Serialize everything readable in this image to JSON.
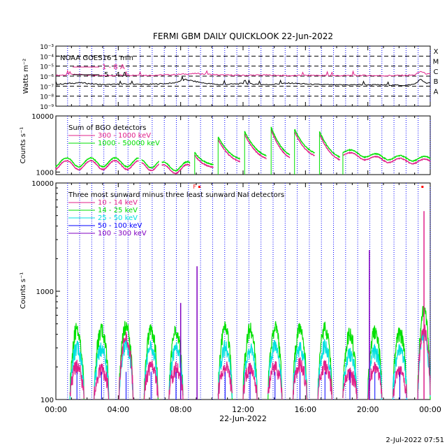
{
  "title": "FERMI GBM DAILY QUICKLOOK  22-Jun-2022",
  "footer_timestamp": "2-Jul-2022 07:51",
  "x_axis": {
    "label": "22-Jun-2022",
    "ticks": [
      "00:00",
      "04:00",
      "08:00",
      "12:00",
      "16:00",
      "20:00",
      "00:00"
    ]
  },
  "colors": {
    "axes": "#000000",
    "gridline": "#0000ff",
    "dashed_level": "#000000",
    "pink": "#e0208a",
    "green": "#00e000",
    "cyan": "#00e0e0",
    "blue": "#0000ff",
    "purple": "#8000c0",
    "red_marker": "#ff0000"
  },
  "chart_data": [
    {
      "type": "line",
      "panel": "goes",
      "ylabel": "Watts m⁻²",
      "yscale": "log",
      "ylim": [
        1e-09,
        0.001
      ],
      "y_ticks": [
        "10⁻³",
        "10⁻⁴",
        "10⁻⁵",
        "10⁻⁶",
        "10⁻⁷",
        "10⁻⁸",
        "10⁻⁹"
      ],
      "flare_classes": [
        "X",
        "M",
        "C",
        "B",
        "A"
      ],
      "legend_title": "NOAA GOES16 1 min",
      "series": [
        {
          "name": "1 - 8 A",
          "color": "#e0208a",
          "baseline": 1.4e-06,
          "x": [
            0,
            1.5,
            3,
            4.5,
            6,
            7.5,
            9,
            10.5,
            12,
            13.5,
            15,
            16.5,
            18,
            19.5,
            21,
            22.5,
            23,
            23.4,
            23.7,
            24
          ],
          "y": [
            1.2e-06,
            1.5e-06,
            1.1e-06,
            1.3e-06,
            1.2e-06,
            1.4e-06,
            1.8e-06,
            1.3e-06,
            1.2e-06,
            1.3e-06,
            1.1e-06,
            1.2e-06,
            1.1e-06,
            1.2e-06,
            1.1e-06,
            1.2e-06,
            1.3e-06,
            3e-06,
            1.8e-06,
            1.5e-06
          ]
        },
        {
          "name": ".5 - 4 A",
          "color": "#000000",
          "baseline": 1.5e-07,
          "x": [
            0,
            1.5,
            3,
            4.5,
            6,
            7.5,
            8.3,
            9,
            9.5,
            10.5,
            12,
            13.5,
            15,
            16.5,
            18,
            19.5,
            21,
            22.5,
            23,
            23.4,
            23.7,
            24
          ],
          "y": [
            1.5e-07,
            2.2e-07,
            1.4e-07,
            1.6e-07,
            1.5e-07,
            2e-07,
            4.5e-07,
            2.8e-07,
            2e-07,
            1.4e-07,
            1.8e-07,
            1.4e-07,
            2e-07,
            1.5e-07,
            1.3e-07,
            1.4e-07,
            1.3e-07,
            1.2e-07,
            1.6e-07,
            5e-07,
            2e-07,
            2e-07
          ]
        }
      ]
    },
    {
      "type": "line",
      "panel": "bgo",
      "ylabel": "Counts s⁻¹",
      "yscale": "log",
      "ylim": [
        900,
        10000
      ],
      "y_ticks": [
        "10000",
        "1000"
      ],
      "legend_title": "Sum of BGO detectors",
      "series": [
        {
          "name": "300 - 1000 keV",
          "color": "#e0208a"
        },
        {
          "name": "1000 - 50000 keV",
          "color": "#00e000"
        }
      ],
      "orbit_segments": [
        {
          "start": 0.0,
          "end": 5.3,
          "level": 1350,
          "mode": "wave"
        },
        {
          "start": 5.5,
          "end": 6.6,
          "level": 1300,
          "mode": "wave"
        },
        {
          "start": 6.8,
          "end": 8.6,
          "level": 1150,
          "mode": "wave"
        },
        {
          "start": 8.9,
          "end": 10.1,
          "peak": 2000,
          "end_level": 1150,
          "mode": "decay"
        },
        {
          "start": 10.4,
          "end": 11.8,
          "peak": 3800,
          "end_level": 1350,
          "mode": "decay"
        },
        {
          "start": 12.1,
          "end": 13.5,
          "peak": 4700,
          "end_level": 1500,
          "mode": "decay"
        },
        {
          "start": 13.8,
          "end": 15.0,
          "peak": 5600,
          "end_level": 1500,
          "mode": "decay"
        },
        {
          "start": 15.3,
          "end": 16.6,
          "peak": 5200,
          "end_level": 1700,
          "mode": "decay"
        },
        {
          "start": 16.9,
          "end": 18.2,
          "peak": 4700,
          "end_level": 1400,
          "mode": "decay"
        },
        {
          "start": 18.4,
          "end": 24.0,
          "level": 1500,
          "mode": "slow"
        }
      ],
      "green_ratio": 1.12
    },
    {
      "type": "line",
      "panel": "nai",
      "ylabel": "Counts s⁻¹",
      "yscale": "log",
      "ylim": [
        100,
        10000
      ],
      "y_ticks": [
        "10000",
        "1000",
        "100"
      ],
      "legend_title": "Three most sunward minus three least sunward NaI detectors",
      "series": [
        {
          "name": "10 - 14 keV",
          "color": "#e0208a"
        },
        {
          "name": "14 - 25 keV",
          "color": "#00e000"
        },
        {
          "name": "25 - 50 keV",
          "color": "#00e0e0"
        },
        {
          "name": "50 - 100 keV",
          "color": "#0000ff"
        },
        {
          "name": "100 - 300 keV",
          "color": "#8000c0"
        }
      ],
      "orbit_bumps": [
        {
          "start": 0.9,
          "end": 1.8,
          "green": 450,
          "cyan": 300,
          "pink": 200
        },
        {
          "start": 2.45,
          "end": 3.4,
          "green": 430,
          "cyan": 290,
          "pink": 190
        },
        {
          "start": 4.05,
          "end": 4.95,
          "green": 470,
          "cyan": 320,
          "pink": 360
        },
        {
          "start": 5.65,
          "end": 6.55,
          "green": 440,
          "cyan": 300,
          "pink": 200
        },
        {
          "start": 7.25,
          "end": 8.15,
          "green": 420,
          "cyan": 290,
          "pink": 190
        },
        {
          "start": 10.4,
          "end": 11.3,
          "green": 450,
          "cyan": 300,
          "pink": 200
        },
        {
          "start": 12.0,
          "end": 12.9,
          "green": 440,
          "cyan": 290,
          "pink": 190
        },
        {
          "start": 13.6,
          "end": 14.5,
          "green": 460,
          "cyan": 310,
          "pink": 200
        },
        {
          "start": 15.2,
          "end": 16.1,
          "green": 450,
          "cyan": 300,
          "pink": 210
        },
        {
          "start": 16.8,
          "end": 17.7,
          "green": 460,
          "cyan": 310,
          "pink": 200
        },
        {
          "start": 18.4,
          "end": 19.3,
          "green": 400,
          "cyan": 260,
          "pink": 170
        },
        {
          "start": 20.0,
          "end": 20.9,
          "green": 420,
          "cyan": 280,
          "pink": 190
        },
        {
          "start": 21.6,
          "end": 22.5,
          "green": 410,
          "cyan": 280,
          "pink": 180
        },
        {
          "start": 23.2,
          "end": 24.0,
          "green": 650,
          "cyan": 400,
          "pink": 450
        }
      ],
      "spikes": [
        {
          "x": 8.0,
          "value": 780,
          "color": "#8000c0"
        },
        {
          "x": 9.05,
          "value": 1700,
          "color": "#8000c0"
        },
        {
          "x": 20.1,
          "value": 2400,
          "color": "#8000c0"
        },
        {
          "x": 23.6,
          "value": 5500,
          "color": "#e0208a"
        }
      ],
      "top_markers": [
        {
          "x": 8.9,
          "label": "F"
        },
        {
          "x": 9.2,
          "label": ""
        },
        {
          "x": 23.5,
          "label": ""
        }
      ]
    }
  ]
}
